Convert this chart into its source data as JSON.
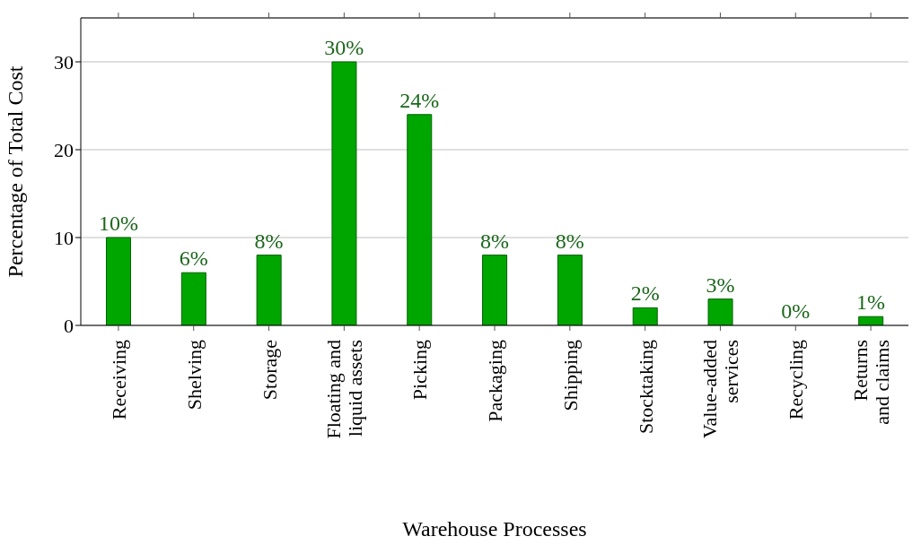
{
  "chart_data": {
    "type": "bar",
    "xlabel": "Warehouse Processes",
    "ylabel": "Percentage of Total Cost",
    "categories": [
      "Receiving",
      "Shelving",
      "Storage",
      "Floating and\nliquid assets",
      "Picking",
      "Packaging",
      "Shipping",
      "Stocktaking",
      "Value-added\nservices",
      "Recycling",
      "Returns\nand claims"
    ],
    "values": [
      10,
      6,
      8,
      30,
      24,
      8,
      8,
      2,
      3,
      0,
      1
    ],
    "value_labels": [
      "10%",
      "6%",
      "8%",
      "30%",
      "24%",
      "8%",
      "8%",
      "2%",
      "3%",
      "0%",
      "1%"
    ],
    "color": "#00a600",
    "ylim": [
      0,
      35
    ],
    "yticks": [
      0,
      10,
      20,
      30
    ],
    "grid": "y"
  }
}
